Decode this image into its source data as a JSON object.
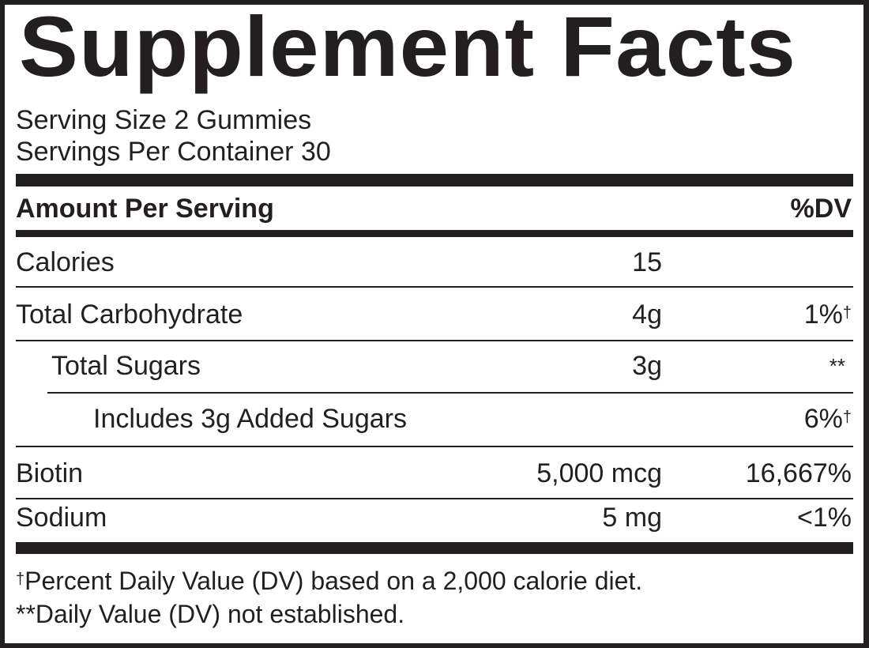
{
  "title": "Supplement Facts",
  "serving_size": "Serving Size 2 Gummies",
  "servings_per_container": "Servings Per Container 30",
  "header": {
    "amount_per_serving": "Amount Per Serving",
    "dv": "%DV"
  },
  "rows": [
    {
      "name": "Calories",
      "amount": "15",
      "dv": "",
      "mark": ""
    },
    {
      "name": "Total Carbohydrate",
      "amount": "4g",
      "dv": "1%",
      "mark": "†"
    },
    {
      "name": "Total Sugars",
      "amount": "3g",
      "dv": "**",
      "mark": ""
    },
    {
      "name": "Includes 3g Added Sugars",
      "amount": "",
      "dv": "6%",
      "mark": "†"
    },
    {
      "name": "Biotin",
      "amount": "5,000 mcg",
      "dv": "16,667%",
      "mark": ""
    },
    {
      "name": "Sodium",
      "amount": "5 mg",
      "dv": "<1%",
      "mark": ""
    }
  ],
  "footnotes": {
    "dagger_mark": "†",
    "dagger_text": "Percent Daily Value (DV) based on a 2,000 calorie diet.",
    "double_star": "**Daily Value (DV) not established."
  },
  "colors": {
    "ink": "#231f20",
    "background": "#ffffff"
  }
}
